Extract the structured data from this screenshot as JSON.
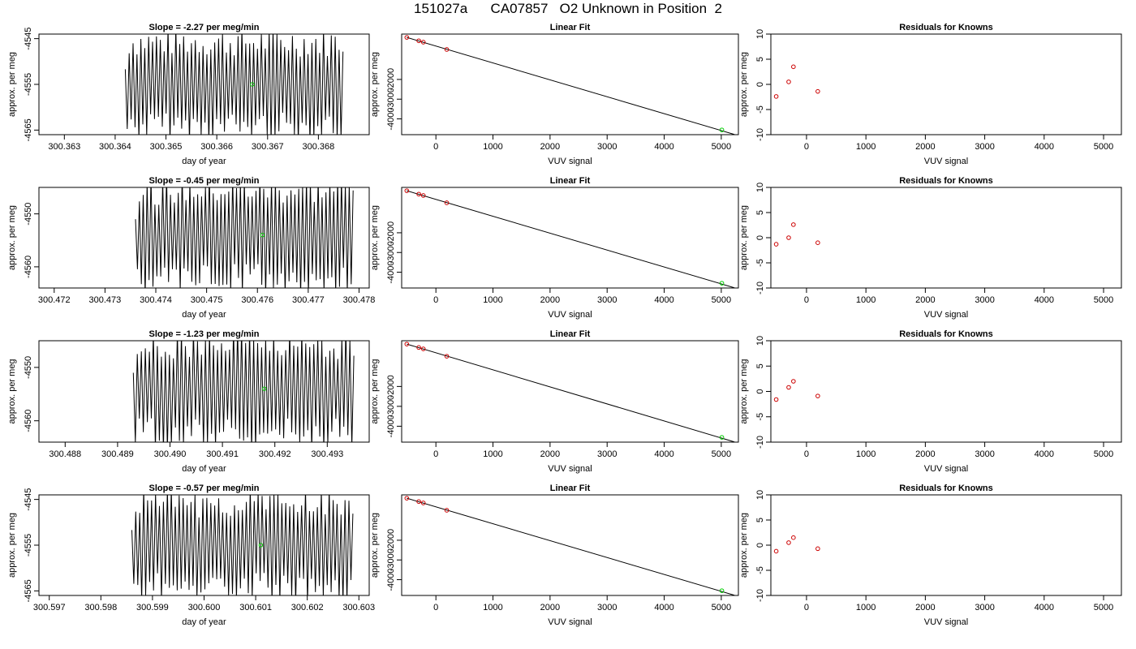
{
  "page_title": "151027a      CA07857   O2 Unknown in Position  2",
  "colors": {
    "trace": "#000000",
    "known_point": "#cc0000",
    "unknown_point": "#00cc00"
  },
  "chart_data": [
    {
      "type": "line",
      "row": 0,
      "col": 0,
      "title": "Slope =  -2.27  per meg/min",
      "xlabel": "day of year",
      "ylabel": "approx. per meg",
      "xlim": [
        300.3625,
        300.369
      ],
      "ylim": [
        -4566,
        -4544
      ],
      "x_ticks": [
        "300.363",
        "300.364",
        "300.365",
        "300.366",
        "300.367",
        "300.368"
      ],
      "y_ticks": [
        "-4545",
        "-4555",
        "-4565"
      ],
      "trace_start": 300.3642,
      "trace_end": 300.3685,
      "center": -4555,
      "amplitude": 11,
      "cycle_days": 7.65e-05,
      "marker": {
        "x": 300.3667,
        "y": -4555
      }
    },
    {
      "type": "scatter",
      "row": 0,
      "col": 1,
      "title": "Linear Fit",
      "xlabel": "VUV signal",
      "ylabel": "approx. per meg",
      "xlim": [
        -600,
        5300
      ],
      "ylim": [
        -4800,
        300
      ],
      "x_ticks": [
        "0",
        "1000",
        "2000",
        "3000",
        "4000",
        "5000"
      ],
      "y_ticks": [
        "-2000",
        "-3000",
        "-4000"
      ],
      "points": [
        [
          -510,
          130
        ],
        [
          -300,
          -40
        ],
        [
          -220,
          -110
        ],
        [
          190,
          -480
        ]
      ],
      "unknown": [
        [
          5010,
          -4560
        ]
      ],
      "fit_line": [
        [
          -510,
          130
        ],
        [
          5230,
          -4790
        ]
      ]
    },
    {
      "type": "scatter",
      "row": 0,
      "col": 2,
      "title": "Residuals for Knowns",
      "xlabel": "VUV signal",
      "ylabel": "approx. per meg",
      "xlim": [
        -600,
        5300
      ],
      "ylim": [
        -10,
        10
      ],
      "x_ticks": [
        "0",
        "1000",
        "2000",
        "3000",
        "4000",
        "5000"
      ],
      "y_ticks": [
        "10",
        "5",
        "0",
        "-5",
        "-10"
      ],
      "points": [
        [
          -510,
          -2.4
        ],
        [
          -300,
          0.5
        ],
        [
          -220,
          3.5
        ],
        [
          190,
          -1.4
        ]
      ]
    },
    {
      "type": "line",
      "row": 1,
      "col": 0,
      "title": "Slope =  -0.45  per meg/min",
      "xlabel": "day of year",
      "ylabel": "approx. per meg",
      "xlim": [
        300.4717,
        300.4782
      ],
      "ylim": [
        -4564,
        -4545
      ],
      "x_ticks": [
        "300.472",
        "300.473",
        "300.474",
        "300.475",
        "300.476",
        "300.477",
        "300.478"
      ],
      "y_ticks": [
        "-4550",
        "-4560"
      ],
      "trace_start": 300.4736,
      "trace_end": 300.4779,
      "center": -4554,
      "amplitude": 10,
      "cycle_days": 7.65e-05,
      "marker": {
        "x": 300.4761,
        "y": -4554
      }
    },
    {
      "type": "scatter",
      "row": 1,
      "col": 1,
      "title": "Linear Fit",
      "xlabel": "VUV signal",
      "ylabel": "approx. per meg",
      "xlim": [
        -600,
        5300
      ],
      "ylim": [
        -4800,
        300
      ],
      "x_ticks": [
        "0",
        "1000",
        "2000",
        "3000",
        "4000",
        "5000"
      ],
      "y_ticks": [
        "-2000",
        "-3000",
        "-4000"
      ],
      "points": [
        [
          -510,
          130
        ],
        [
          -300,
          -40
        ],
        [
          -220,
          -110
        ],
        [
          190,
          -480
        ]
      ],
      "unknown": [
        [
          5010,
          -4560
        ]
      ],
      "fit_line": [
        [
          -510,
          130
        ],
        [
          5230,
          -4790
        ]
      ]
    },
    {
      "type": "scatter",
      "row": 1,
      "col": 2,
      "title": "Residuals for Knowns",
      "xlabel": "VUV signal",
      "ylabel": "approx. per meg",
      "xlim": [
        -600,
        5300
      ],
      "ylim": [
        -10,
        10
      ],
      "x_ticks": [
        "0",
        "1000",
        "2000",
        "3000",
        "4000",
        "5000"
      ],
      "y_ticks": [
        "10",
        "5",
        "0",
        "-5",
        "-10"
      ],
      "points": [
        [
          -510,
          -1.3
        ],
        [
          -300,
          0.0
        ],
        [
          -220,
          2.6
        ],
        [
          190,
          -1.0
        ]
      ]
    },
    {
      "type": "line",
      "row": 2,
      "col": 0,
      "title": "Slope =  -1.23  per meg/min",
      "xlabel": "day of year",
      "ylabel": "approx. per meg",
      "xlim": [
        300.4875,
        300.4938
      ],
      "ylim": [
        -4564,
        -4545
      ],
      "x_ticks": [
        "300.488",
        "300.489",
        "300.490",
        "300.491",
        "300.492",
        "300.493"
      ],
      "y_ticks": [
        "-4550",
        "-4560"
      ],
      "trace_start": 300.4893,
      "trace_end": 300.4935,
      "center": -4554,
      "amplitude": 10,
      "cycle_days": 7.65e-05,
      "marker": {
        "x": 300.4918,
        "y": -4554
      }
    },
    {
      "type": "scatter",
      "row": 2,
      "col": 1,
      "title": "Linear Fit",
      "xlabel": "VUV signal",
      "ylabel": "approx. per meg",
      "xlim": [
        -600,
        5300
      ],
      "ylim": [
        -4800,
        300
      ],
      "x_ticks": [
        "0",
        "1000",
        "2000",
        "3000",
        "4000",
        "5000"
      ],
      "y_ticks": [
        "-2000",
        "-3000",
        "-4000"
      ],
      "points": [
        [
          -510,
          130
        ],
        [
          -300,
          -40
        ],
        [
          -220,
          -110
        ],
        [
          190,
          -480
        ]
      ],
      "unknown": [
        [
          5010,
          -4560
        ]
      ],
      "fit_line": [
        [
          -510,
          130
        ],
        [
          5230,
          -4790
        ]
      ]
    },
    {
      "type": "scatter",
      "row": 2,
      "col": 2,
      "title": "Residuals for Knowns",
      "xlabel": "VUV signal",
      "ylabel": "approx. per meg",
      "xlim": [
        -600,
        5300
      ],
      "ylim": [
        -10,
        10
      ],
      "x_ticks": [
        "0",
        "1000",
        "2000",
        "3000",
        "4000",
        "5000"
      ],
      "y_ticks": [
        "10",
        "5",
        "0",
        "-5",
        "-10"
      ],
      "points": [
        [
          -510,
          -1.6
        ],
        [
          -300,
          0.8
        ],
        [
          -220,
          2.0
        ],
        [
          190,
          -0.9
        ]
      ]
    },
    {
      "type": "line",
      "row": 3,
      "col": 0,
      "title": "Slope =  -0.57  per meg/min",
      "xlabel": "day of year",
      "ylabel": "approx. per meg",
      "xlim": [
        300.5968,
        300.6032
      ],
      "ylim": [
        -4566,
        -4544
      ],
      "x_ticks": [
        "300.597",
        "300.598",
        "300.599",
        "300.600",
        "300.601",
        "300.602",
        "300.603"
      ],
      "y_ticks": [
        "-4545",
        "-4555",
        "-4565"
      ],
      "trace_start": 300.5986,
      "trace_end": 300.6029,
      "center": -4555,
      "amplitude": 11,
      "cycle_days": 7.65e-05,
      "marker": {
        "x": 300.6011,
        "y": -4555
      }
    },
    {
      "type": "scatter",
      "row": 3,
      "col": 1,
      "title": "Linear Fit",
      "xlabel": "VUV signal",
      "ylabel": "approx. per meg",
      "xlim": [
        -600,
        5300
      ],
      "ylim": [
        -4800,
        300
      ],
      "x_ticks": [
        "0",
        "1000",
        "2000",
        "3000",
        "4000",
        "5000"
      ],
      "y_ticks": [
        "-2000",
        "-3000",
        "-4000"
      ],
      "points": [
        [
          -510,
          130
        ],
        [
          -300,
          -40
        ],
        [
          -220,
          -110
        ],
        [
          190,
          -480
        ]
      ],
      "unknown": [
        [
          5010,
          -4560
        ]
      ],
      "fit_line": [
        [
          -510,
          130
        ],
        [
          5230,
          -4790
        ]
      ]
    },
    {
      "type": "scatter",
      "row": 3,
      "col": 2,
      "title": "Residuals for Knowns",
      "xlabel": "VUV signal",
      "ylabel": "approx. per meg",
      "xlim": [
        -600,
        5300
      ],
      "ylim": [
        -10,
        10
      ],
      "x_ticks": [
        "0",
        "1000",
        "2000",
        "3000",
        "4000",
        "5000"
      ],
      "y_ticks": [
        "10",
        "5",
        "0",
        "-5",
        "-10"
      ],
      "points": [
        [
          -510,
          -1.2
        ],
        [
          -300,
          0.5
        ],
        [
          -220,
          1.5
        ],
        [
          190,
          -0.7
        ]
      ]
    }
  ]
}
